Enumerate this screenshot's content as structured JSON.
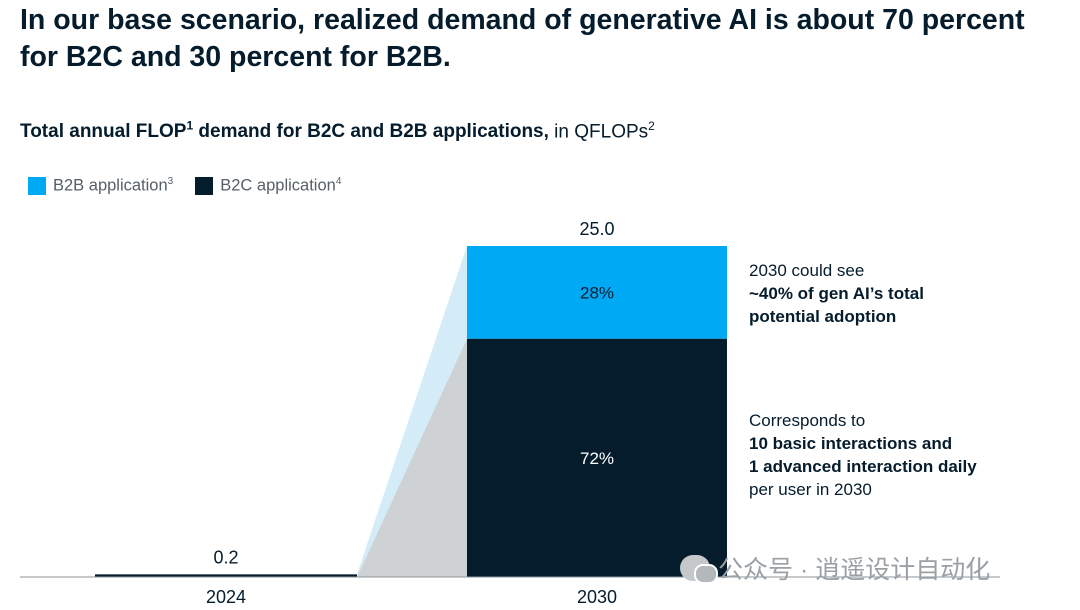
{
  "headline": "In our base scenario, realized demand of generative AI is about 70 percent for B2C and 30 percent for B2B.",
  "subtitle": {
    "bold": "Total annual FLOP",
    "bold_sup": "1",
    "bold_rest": " demand for B2C and B2B applications,",
    "normal": " in QFLOPs",
    "normal_sup": "2"
  },
  "colors": {
    "b2b": "#00a9f4",
    "b2c": "#051c2c",
    "b2b_fan": "#d4ecf8",
    "b2c_fan": "#cfd2d4",
    "axis": "#8f9499"
  },
  "legend": [
    {
      "label": "B2B application",
      "sup": "3",
      "color": "#00a9f4"
    },
    {
      "label": "B2C application",
      "sup": "4",
      "color": "#051c2c"
    }
  ],
  "chart_data": {
    "type": "bar",
    "stacked": true,
    "categories": [
      "2024",
      "2030"
    ],
    "totals": [
      "0.2",
      "25.0"
    ],
    "series": [
      {
        "name": "B2C application",
        "values": [
          0.2,
          18.0
        ],
        "labels": [
          "",
          "72%"
        ],
        "color": "#051c2c"
      },
      {
        "name": "B2B application",
        "values": [
          0.0,
          7.0
        ],
        "labels": [
          "",
          "28%"
        ],
        "color": "#00a9f4"
      }
    ],
    "ylim": [
      0,
      25.0
    ],
    "grid": false,
    "legend": "top-left"
  },
  "annotations": [
    {
      "lines": [
        {
          "text": "2030 could see",
          "bold": false
        },
        {
          "text": "~40% of gen AI’s total",
          "bold": true
        },
        {
          "text": "potential adoption",
          "bold": true
        }
      ]
    },
    {
      "lines": [
        {
          "text": "Corresponds to",
          "bold": false
        },
        {
          "text": "10 basic interactions and",
          "bold": true
        },
        {
          "text": "1 advanced interaction daily",
          "bold": true
        },
        {
          "text": "per user in 2030",
          "bold": false
        }
      ]
    }
  ],
  "watermark": "公众号 · 逍遥设计自动化"
}
